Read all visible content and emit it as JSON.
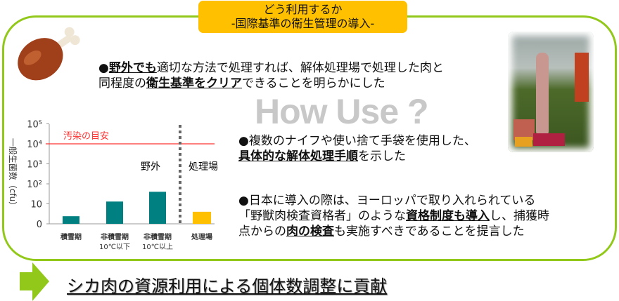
{
  "header": {
    "title_line1": "どう利用するか",
    "title_line2": "-国際基準の衛生管理の導入-"
  },
  "watermark": "How Use ?",
  "point1": {
    "bullet": "●",
    "u1": "野外でも",
    "t1": "適切な方法で処理すれば、解体処理場で処理した肉と",
    "t2": "同程度の",
    "u2": "衛生基準をクリア",
    "t3": "できることを明らかにした"
  },
  "point2": {
    "bullet": "●",
    "t1": "複数のナイフや使い捨て手袋を使用した、",
    "u1": "具体的な解体処理手順",
    "t2": "を示した"
  },
  "point3": {
    "bullet": "●",
    "t1": "日本に導入の際は、ヨーロッパで取り入れられている",
    "t2": "「野獣肉検査資格者」のような",
    "u1": "資格制度も導入",
    "t3": "し、捕獲時",
    "t4": "点からの",
    "u2": "肉の検査",
    "t5": "も実施すべきであることを提言した"
  },
  "conclusion": "シカ肉の資源利用による個体数調整に貢献",
  "colors": {
    "accent_green": "#92c81a",
    "title_bg": "#ffc000",
    "bar_field": "#008080",
    "bar_facility": "#ffc000",
    "threshold": "#ff3030"
  },
  "chart_data": {
    "type": "bar",
    "ylabel": "一般生菌数（cfu）",
    "yscale": "log",
    "yticks": [
      "0",
      "10",
      "10²",
      "10³",
      "10⁴",
      "10⁵"
    ],
    "categories": [
      [
        "積雪期"
      ],
      [
        "非積雪期",
        "10℃以下"
      ],
      [
        "非積雪期",
        "10℃以上"
      ],
      [
        "処理場"
      ]
    ],
    "values": [
      2.4,
      13,
      40,
      4
    ],
    "groups": [
      {
        "label": "野外",
        "categories": [
          0,
          1,
          2
        ]
      },
      {
        "label": "処理場",
        "categories": [
          3
        ]
      }
    ],
    "threshold": {
      "value": 10000,
      "label": "汚染の目安"
    }
  }
}
